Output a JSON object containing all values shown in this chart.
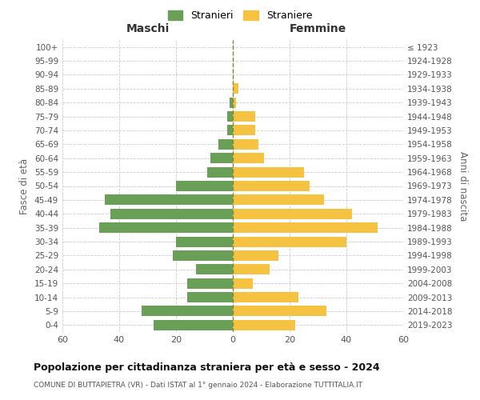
{
  "age_groups": [
    "100+",
    "95-99",
    "90-94",
    "85-89",
    "80-84",
    "75-79",
    "70-74",
    "65-69",
    "60-64",
    "55-59",
    "50-54",
    "45-49",
    "40-44",
    "35-39",
    "30-34",
    "25-29",
    "20-24",
    "15-19",
    "10-14",
    "5-9",
    "0-4"
  ],
  "birth_years": [
    "≤ 1923",
    "1924-1928",
    "1929-1933",
    "1934-1938",
    "1939-1943",
    "1944-1948",
    "1949-1953",
    "1954-1958",
    "1959-1963",
    "1964-1968",
    "1969-1973",
    "1974-1978",
    "1979-1983",
    "1984-1988",
    "1989-1993",
    "1994-1998",
    "1999-2003",
    "2004-2008",
    "2009-2013",
    "2014-2018",
    "2019-2023"
  ],
  "males": [
    0,
    0,
    0,
    0,
    1,
    2,
    2,
    5,
    8,
    9,
    20,
    45,
    43,
    47,
    20,
    21,
    13,
    16,
    16,
    32,
    28
  ],
  "females": [
    0,
    0,
    0,
    2,
    1,
    8,
    8,
    9,
    11,
    25,
    27,
    32,
    42,
    51,
    40,
    16,
    13,
    7,
    23,
    33,
    22
  ],
  "male_color": "#6a9f58",
  "female_color": "#f5c242",
  "background_color": "#ffffff",
  "grid_color": "#cccccc",
  "title": "Popolazione per cittadinanza straniera per età e sesso - 2024",
  "subtitle": "COMUNE DI BUTTAPIETRA (VR) - Dati ISTAT al 1° gennaio 2024 - Elaborazione TUTTITALIA.IT",
  "xlabel_left": "Maschi",
  "xlabel_right": "Femmine",
  "ylabel_left": "Fasce di età",
  "ylabel_right": "Anni di nascita",
  "legend_male": "Stranieri",
  "legend_female": "Straniere",
  "xlim": 60
}
